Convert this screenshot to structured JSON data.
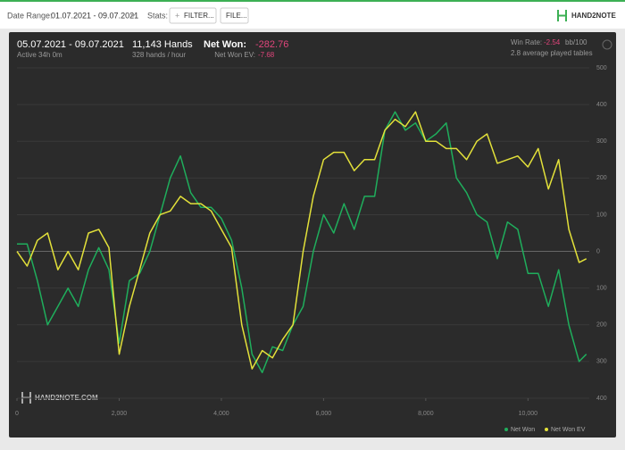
{
  "toolbar": {
    "date_range_label": "Date Range:",
    "date_range": "01.07.2021 - 09.07.2021",
    "stats_label": "Stats:",
    "filter_button": "FILTER...",
    "file_button": "FILE...",
    "logo": "HAND2NOTE"
  },
  "summary": {
    "period": "05.07.2021 - 09.07.2021",
    "active": "Active 34h 0m",
    "hands": "11,143 Hands",
    "rate": "328 hands / hour",
    "net_won_label": "Net Won:",
    "net_won": -282.76,
    "ev_label": "Net Won  EV:",
    "ev": -7.68,
    "win_rate_label": "Win Rate:",
    "win_rate": -2.54,
    "win_rate_unit": "bb/100",
    "tables": "2.8 average played tables",
    "watermark": "HAND2NOTE.COM"
  },
  "chart_data": {
    "type": "line",
    "x": [
      0,
      200,
      400,
      600,
      800,
      1000,
      1200,
      1400,
      1600,
      1800,
      2000,
      2200,
      2400,
      2600,
      2800,
      3000,
      3200,
      3400,
      3600,
      3800,
      4000,
      4200,
      4400,
      4600,
      4800,
      5000,
      5200,
      5400,
      5600,
      5800,
      6000,
      6200,
      6400,
      6600,
      6800,
      7000,
      7200,
      7400,
      7600,
      7800,
      8000,
      8200,
      8400,
      8600,
      8800,
      9000,
      9200,
      9400,
      9600,
      9800,
      10000,
      10200,
      10400,
      10600,
      10800,
      11000,
      11143
    ],
    "series": [
      {
        "name": "Net Won",
        "color": "#1fae5c",
        "values": [
          20,
          20,
          -80,
          -200,
          -150,
          -100,
          -150,
          -50,
          10,
          -50,
          -250,
          -80,
          -60,
          0,
          100,
          200,
          260,
          160,
          120,
          120,
          90,
          30,
          -100,
          -280,
          -330,
          -260,
          -270,
          -200,
          -150,
          0,
          100,
          50,
          130,
          60,
          150,
          150,
          330,
          380,
          330,
          350,
          300,
          320,
          350,
          200,
          160,
          100,
          80,
          -20,
          80,
          60,
          -60,
          -60,
          -150,
          -50,
          -200,
          -300,
          -280
        ]
      },
      {
        "name": "Net Won  EV",
        "color": "#e3e13a",
        "values": [
          0,
          -40,
          30,
          50,
          -50,
          0,
          -50,
          50,
          60,
          10,
          -280,
          -150,
          -50,
          50,
          100,
          110,
          150,
          130,
          130,
          110,
          60,
          10,
          -200,
          -320,
          -270,
          -290,
          -240,
          -200,
          0,
          150,
          250,
          270,
          270,
          220,
          250,
          250,
          330,
          360,
          340,
          380,
          300,
          300,
          280,
          280,
          250,
          300,
          320,
          240,
          250,
          260,
          230,
          280,
          170,
          250,
          60,
          -30,
          -20
        ]
      }
    ],
    "xlim": [
      0,
      11200
    ],
    "xticks": [
      0,
      {
        "value": 2000,
        "label": "2,000"
      },
      {
        "value": 4000,
        "label": "4,000"
      },
      {
        "value": 6000,
        "label": "6,000"
      },
      {
        "value": 8000,
        "label": "8,000"
      },
      {
        "value": 10000,
        "label": "10,000"
      }
    ],
    "ylim": [
      -400,
      500
    ],
    "yticks": [
      500,
      400,
      300,
      200,
      100,
      0,
      {
        "value": -100,
        "label": "100"
      },
      {
        "value": -200,
        "label": "200"
      },
      {
        "value": -300,
        "label": "300"
      },
      {
        "value": -400,
        "label": "400"
      }
    ],
    "grid": true
  }
}
